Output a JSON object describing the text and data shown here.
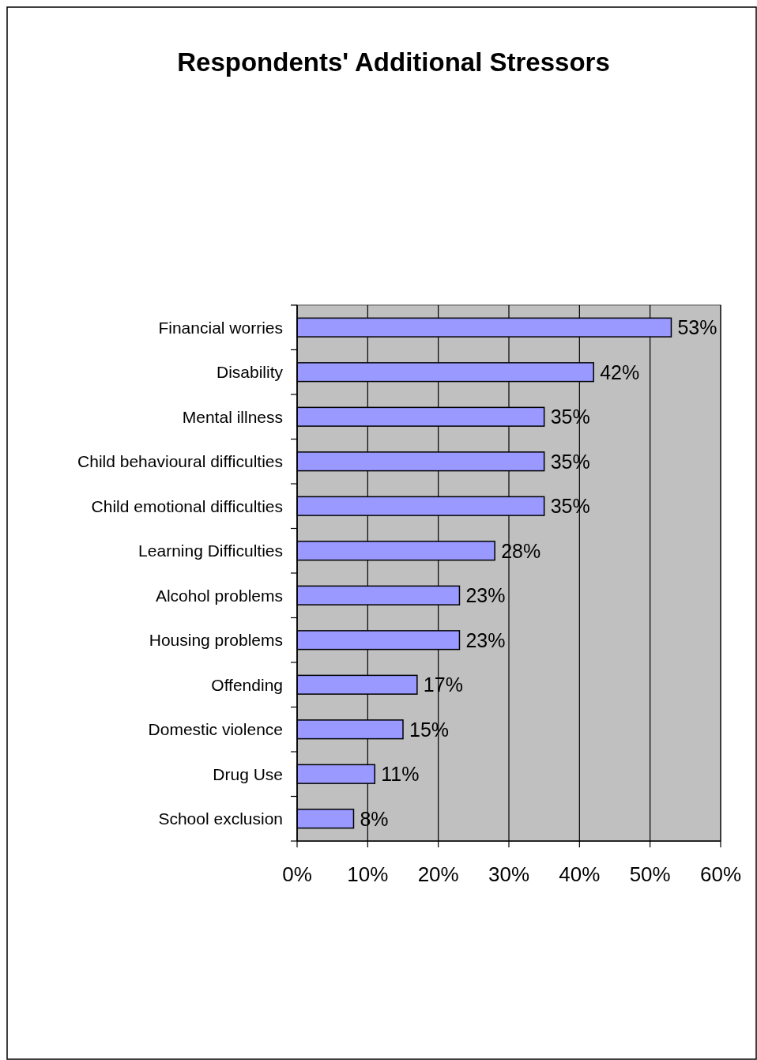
{
  "chart_data": {
    "type": "bar",
    "title": "Respondents' Additional Stressors",
    "orientation": "horizontal",
    "categories": [
      "Financial worries",
      "Disability",
      "Mental illness",
      "Child behavioural difficulties",
      "Child emotional difficulties",
      "Learning Difficulties",
      "Alcohol problems",
      "Housing problems",
      "Offending",
      "Domestic violence",
      "Drug Use",
      "School exclusion"
    ],
    "values": [
      53,
      42,
      35,
      35,
      35,
      28,
      23,
      23,
      17,
      15,
      11,
      8
    ],
    "value_labels": [
      "53%",
      "42%",
      "35%",
      "35%",
      "35%",
      "28%",
      "23%",
      "23%",
      "17%",
      "15%",
      "11%",
      "8%"
    ],
    "color": "#9999ff",
    "xlim": [
      0,
      60
    ],
    "xticks": [
      {
        "value": 0,
        "label": "0%"
      },
      {
        "value": 10,
        "label": "10%"
      },
      {
        "value": 20,
        "label": "20%"
      },
      {
        "value": 30,
        "label": "30%"
      },
      {
        "value": 40,
        "label": "40%"
      },
      {
        "value": 50,
        "label": "50%"
      },
      {
        "value": 60,
        "label": "60%"
      }
    ],
    "grid": "x"
  }
}
